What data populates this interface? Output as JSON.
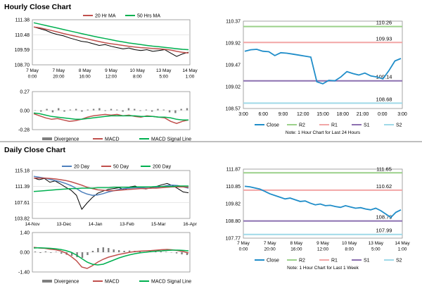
{
  "sections": {
    "hourly_title": "Hourly Close Chart",
    "daily_title": "Daily Close Chart"
  },
  "colors": {
    "price": "#000000",
    "ma_short": "#c0504d",
    "ma_long": "#00b050",
    "ma_mid": "#4f81bd",
    "close_line": "#1f8dc9",
    "r2": "#9bd18a",
    "r1": "#f2a6a6",
    "s1": "#8c70b0",
    "s2": "#9fd9e8",
    "divergence": "#7f7f7f",
    "macd": "#c0504d",
    "signal": "#00b050"
  },
  "chart_data": [
    {
      "id": "hourly_price",
      "type": "line",
      "legend": [
        "20 Hr MA",
        "50 Hrs MA"
      ],
      "yticks": [
        "111.38",
        "110.48",
        "109.59",
        "108.70"
      ],
      "yrange": [
        108.7,
        111.38
      ],
      "xticks": [
        "7 May|0:00",
        "7 May|20:00",
        "8 May|16:00",
        "9 May|12:00",
        "10 May|8:00",
        "13 May|5:00",
        "14 May|1:00"
      ],
      "series": [
        {
          "name": "Close",
          "values": [
            110.95,
            110.85,
            110.75,
            110.6,
            110.5,
            110.42,
            110.3,
            110.2,
            110.1,
            110.05,
            109.95,
            109.85,
            109.9,
            109.8,
            109.72,
            109.65,
            109.7,
            109.6,
            109.55,
            109.6,
            109.5,
            109.55,
            109.6,
            109.4,
            109.2,
            109.35,
            109.45
          ]
        },
        {
          "name": "20 Hr MA",
          "values": [
            110.95,
            110.9,
            110.82,
            110.74,
            110.65,
            110.56,
            110.48,
            110.4,
            110.32,
            110.24,
            110.16,
            110.08,
            110.01,
            109.95,
            109.9,
            109.85,
            109.8,
            109.76,
            109.72,
            109.7,
            109.67,
            109.65,
            109.62,
            109.58,
            109.5,
            109.44,
            109.4
          ]
        },
        {
          "name": "50 Hrs MA",
          "values": [
            111.2,
            111.12,
            111.04,
            110.96,
            110.88,
            110.8,
            110.72,
            110.64,
            110.56,
            110.48,
            110.4,
            110.33,
            110.26,
            110.19,
            110.12,
            110.06,
            110.0,
            109.95,
            109.9,
            109.85,
            109.81,
            109.78,
            109.74,
            109.7,
            109.66,
            109.62,
            109.6
          ]
        }
      ]
    },
    {
      "id": "hourly_macd",
      "type": "line",
      "legend": [
        "Divergence",
        "MACD",
        "MACD Signal Line"
      ],
      "yticks": [
        "0.27",
        "0.00",
        "-0.28"
      ],
      "yrange": [
        -0.28,
        0.27
      ],
      "series": [
        {
          "name": "Divergence",
          "values": [
            0.0,
            -0.02,
            0.02,
            -0.03,
            0.03,
            -0.02,
            0.01,
            0.02,
            -0.02,
            0.01,
            0.02,
            0.03,
            -0.01,
            0.02,
            0.01,
            -0.02,
            0.03,
            0.02,
            -0.01,
            0.01,
            -0.02,
            0.02,
            0.01,
            -0.03,
            -0.04,
            0.02,
            0.03
          ]
        },
        {
          "name": "MACD",
          "values": [
            -0.05,
            -0.08,
            -0.11,
            -0.13,
            -0.12,
            -0.14,
            -0.16,
            -0.15,
            -0.13,
            -0.1,
            -0.08,
            -0.07,
            -0.06,
            -0.07,
            -0.06,
            -0.08,
            -0.07,
            -0.09,
            -0.1,
            -0.08,
            -0.09,
            -0.1,
            -0.11,
            -0.16,
            -0.19,
            -0.16,
            -0.14
          ]
        },
        {
          "name": "MACD Signal Line",
          "values": [
            -0.04,
            -0.05,
            -0.07,
            -0.09,
            -0.1,
            -0.11,
            -0.12,
            -0.13,
            -0.13,
            -0.12,
            -0.11,
            -0.1,
            -0.09,
            -0.08,
            -0.08,
            -0.08,
            -0.08,
            -0.08,
            -0.09,
            -0.09,
            -0.09,
            -0.1,
            -0.1,
            -0.11,
            -0.13,
            -0.14,
            -0.14
          ]
        }
      ]
    },
    {
      "id": "hourly_levels",
      "type": "line",
      "title_note": "Note: 1 Hour Chart for Last 24 Hours",
      "yticks": [
        "110.37",
        "109.92",
        "109.47",
        "109.02",
        "108.57"
      ],
      "yrange": [
        108.57,
        110.37
      ],
      "xticks": [
        "3:00",
        "6:00",
        "9:00",
        "12:00",
        "15:00",
        "18:00",
        "21:00",
        "0:00",
        "3:00"
      ],
      "legend": [
        "Close",
        "R2",
        "R1",
        "S1",
        "S2"
      ],
      "levels": [
        {
          "name": "R2",
          "value": 110.26,
          "label": "110.26"
        },
        {
          "name": "R1",
          "value": 109.93,
          "label": "109.93"
        },
        {
          "name": "S1",
          "value": 109.14,
          "label": "109.14"
        },
        {
          "name": "S2",
          "value": 108.68,
          "label": "108.68"
        }
      ],
      "series": [
        {
          "name": "Close",
          "values": [
            109.75,
            109.78,
            109.79,
            109.75,
            109.74,
            109.66,
            109.72,
            109.71,
            109.69,
            109.67,
            109.65,
            109.63,
            109.12,
            109.08,
            109.15,
            109.14,
            109.22,
            109.33,
            109.29,
            109.26,
            109.3,
            109.24,
            109.22,
            109.18,
            109.35,
            109.55,
            109.6
          ]
        }
      ]
    },
    {
      "id": "daily_price",
      "type": "line",
      "legend": [
        "20 Day",
        "50 Day",
        "200 Day"
      ],
      "yticks": [
        "115.18",
        "111.39",
        "107.61",
        "103.82"
      ],
      "yrange": [
        103.82,
        115.18
      ],
      "xticks": [
        "14-Nov",
        "13-Dec",
        "14-Jan",
        "13-Feb",
        "15-Mar",
        "16-Apr"
      ],
      "series": [
        {
          "name": "Close",
          "values": [
            113.4,
            113.0,
            113.3,
            112.4,
            112.7,
            112.0,
            111.2,
            110.5,
            109.3,
            106.0,
            107.5,
            108.8,
            109.8,
            110.3,
            110.7,
            110.9,
            111.1,
            110.6,
            111.3,
            111.5,
            111.0,
            110.8,
            111.1,
            111.4,
            111.8,
            112.1,
            111.6,
            110.9,
            110.1,
            109.9
          ]
        },
        {
          "name": "20 Day",
          "values": [
            113.8,
            113.6,
            113.4,
            113.1,
            112.8,
            112.5,
            112.1,
            111.6,
            110.9,
            110.1,
            109.6,
            109.3,
            109.4,
            109.7,
            110.1,
            110.4,
            110.7,
            110.9,
            111.0,
            111.1,
            111.1,
            111.0,
            111.0,
            111.2,
            111.4,
            111.6,
            111.7,
            111.6,
            111.3,
            111.0
          ]
        },
        {
          "name": "50 Day",
          "values": [
            113.4,
            113.4,
            113.4,
            113.3,
            113.2,
            113.0,
            112.8,
            112.5,
            112.1,
            111.7,
            111.2,
            110.9,
            110.6,
            110.5,
            110.4,
            110.4,
            110.5,
            110.6,
            110.7,
            110.8,
            110.9,
            110.9,
            111.0,
            111.0,
            111.1,
            111.2,
            111.3,
            111.3,
            111.3,
            111.2
          ]
        },
        {
          "name": "200 Day",
          "values": [
            110.2,
            110.3,
            110.4,
            110.5,
            110.6,
            110.7,
            110.8,
            110.9,
            110.9,
            111.0,
            111.0,
            111.0,
            111.1,
            111.1,
            111.1,
            111.2,
            111.2,
            111.2,
            111.2,
            111.3,
            111.3,
            111.3,
            111.3,
            111.4,
            111.4,
            111.4,
            111.4,
            111.5,
            111.5,
            111.5
          ]
        }
      ]
    },
    {
      "id": "daily_macd",
      "type": "line",
      "legend": [
        "Divergence",
        "MACD",
        "MACD Signal Line"
      ],
      "yticks": [
        "1.40",
        "0.00",
        "-1.40"
      ],
      "yrange": [
        -1.4,
        1.4
      ],
      "series": [
        {
          "name": "Divergence",
          "values": [
            0.05,
            -0.05,
            0.06,
            -0.04,
            0.03,
            -0.1,
            -0.18,
            -0.25,
            -0.35,
            -0.4,
            -0.2,
            0.1,
            0.3,
            0.35,
            0.3,
            0.2,
            0.15,
            0.1,
            0.12,
            0.1,
            0.05,
            0.02,
            0.04,
            0.06,
            0.05,
            0.03,
            -0.02,
            -0.08,
            -0.15,
            -0.2
          ]
        },
        {
          "name": "MACD",
          "values": [
            0.35,
            0.3,
            0.28,
            0.22,
            0.18,
            0.1,
            -0.05,
            -0.3,
            -0.6,
            -1.05,
            -1.15,
            -0.95,
            -0.7,
            -0.5,
            -0.35,
            -0.25,
            -0.15,
            -0.08,
            0.0,
            0.05,
            0.08,
            0.1,
            0.12,
            0.15,
            0.18,
            0.2,
            0.17,
            0.12,
            0.05,
            -0.05
          ]
        },
        {
          "name": "MACD Signal Line",
          "values": [
            0.3,
            0.32,
            0.3,
            0.28,
            0.25,
            0.2,
            0.12,
            0.0,
            -0.2,
            -0.45,
            -0.7,
            -0.85,
            -0.9,
            -0.85,
            -0.7,
            -0.55,
            -0.4,
            -0.28,
            -0.18,
            -0.1,
            -0.04,
            0.0,
            0.05,
            0.08,
            0.1,
            0.13,
            0.15,
            0.15,
            0.13,
            0.1
          ]
        }
      ]
    },
    {
      "id": "daily_levels",
      "type": "line",
      "title_note": "Note: 1 Hour Chart for Last 1 Week",
      "yticks": [
        "111.87",
        "110.85",
        "109.82",
        "108.80",
        "107.77"
      ],
      "yrange": [
        107.77,
        111.87
      ],
      "xticks": [
        "7 May|0:00",
        "7 May|20:00",
        "8 May|16:00",
        "9 May|12:00",
        "10 May|8:00",
        "13 May|5:00",
        "14 May|1:00"
      ],
      "legend": [
        "Close",
        "R2",
        "R1",
        "S1",
        "S2"
      ],
      "levels": [
        {
          "name": "R2",
          "value": 111.65,
          "label": "111.65"
        },
        {
          "name": "R1",
          "value": 110.62,
          "label": "110.62"
        },
        {
          "name": "S1",
          "value": 108.79,
          "label": "108.79"
        },
        {
          "name": "S2",
          "value": 107.99,
          "label": "107.99"
        }
      ],
      "series": [
        {
          "name": "Close",
          "values": [
            110.85,
            110.82,
            110.75,
            110.68,
            110.55,
            110.4,
            110.3,
            110.2,
            110.1,
            110.15,
            110.05,
            109.95,
            109.98,
            109.85,
            109.75,
            109.8,
            109.7,
            109.72,
            109.65,
            109.6,
            109.7,
            109.62,
            109.55,
            109.58,
            109.5,
            109.45,
            109.55,
            109.4,
            109.2,
            109.0,
            109.3,
            109.45
          ]
        }
      ]
    }
  ]
}
